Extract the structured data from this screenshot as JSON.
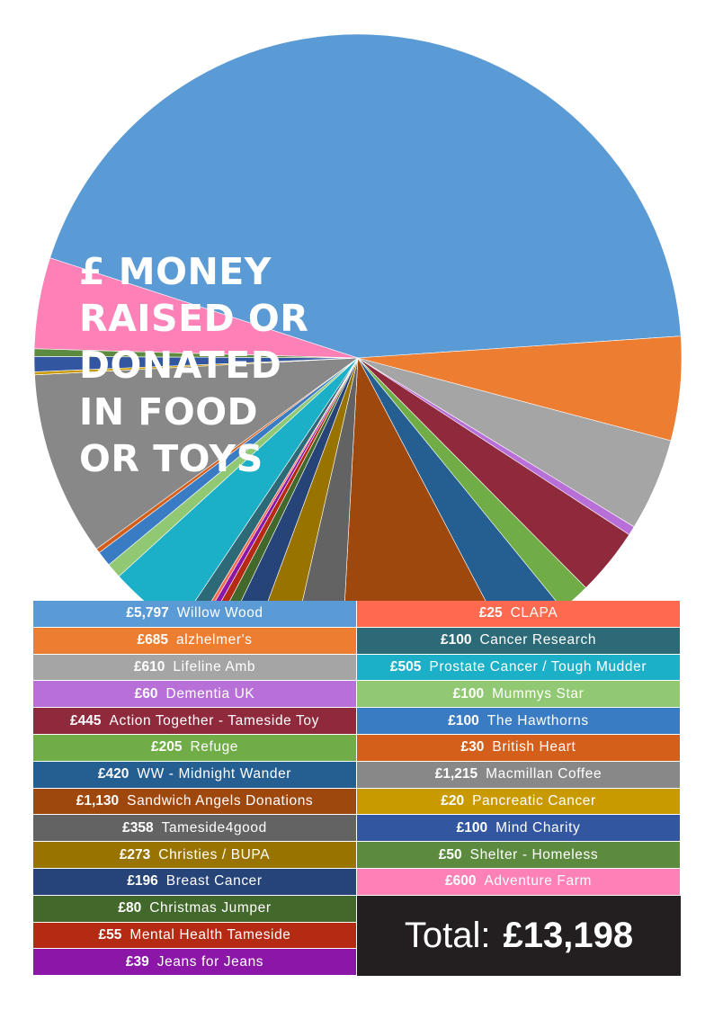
{
  "title_lines": [
    "£ MONEY",
    "RAISED OR",
    "DONATED",
    "IN FOOD",
    "OR TOYS"
  ],
  "chart_data": {
    "type": "pie",
    "title": "£ MONEY RAISED OR DONATED IN FOOD OR TOYS",
    "slices": [
      {
        "label": "Willow Wood",
        "amount_text": "£5,797",
        "value": 5797,
        "color": "#5b9bd5"
      },
      {
        "label": "alzhelmer's",
        "amount_text": "£685",
        "value": 685,
        "color": "#ed7d31"
      },
      {
        "label": "Lifeline Amb",
        "amount_text": "£610",
        "value": 610,
        "color": "#a5a5a5"
      },
      {
        "label": "Dementia UK",
        "amount_text": "£60",
        "value": 60,
        "color": "#b86fd8"
      },
      {
        "label": "Action Together - Tameside Toy",
        "amount_text": "£445",
        "value": 445,
        "color": "#8e2a3c"
      },
      {
        "label": "Refuge",
        "amount_text": "£205",
        "value": 205,
        "color": "#70ad47"
      },
      {
        "label": "WW - Midnight Wander",
        "amount_text": "£420",
        "value": 420,
        "color": "#255e91"
      },
      {
        "label": "Sandwich Angels Donations",
        "amount_text": "£1,130",
        "value": 1130,
        "color": "#9e480e"
      },
      {
        "label": "Tameside4good",
        "amount_text": "£358",
        "value": 358,
        "color": "#636363"
      },
      {
        "label": "Christies / BUPA",
        "amount_text": "£273",
        "value": 273,
        "color": "#997300"
      },
      {
        "label": "Breast Cancer",
        "amount_text": "£196",
        "value": 196,
        "color": "#264478"
      },
      {
        "label": "Christmas Jumper",
        "amount_text": "£80",
        "value": 80,
        "color": "#43682b"
      },
      {
        "label": "Mental Health Tameside",
        "amount_text": "£55",
        "value": 55,
        "color": "#b52a12"
      },
      {
        "label": "Jeans for Jeans",
        "amount_text": "£39",
        "value": 39,
        "color": "#8b16a8"
      },
      {
        "label": "CLAPA",
        "amount_text": "£25",
        "value": 25,
        "color": "#fd6a4f"
      },
      {
        "label": "Cancer Research",
        "amount_text": "£100",
        "value": 100,
        "color": "#2d6a78"
      },
      {
        "label": "Prostate Cancer / Tough Mudder",
        "amount_text": "£505",
        "value": 505,
        "color": "#1cb0c8"
      },
      {
        "label": "Mummys Star",
        "amount_text": "£100",
        "value": 100,
        "color": "#91c873"
      },
      {
        "label": "The Hawthorns",
        "amount_text": "£100",
        "value": 100,
        "color": "#3a7cc4"
      },
      {
        "label": "British Heart",
        "amount_text": "£30",
        "value": 30,
        "color": "#d35f1a"
      },
      {
        "label": "Macmillan Coffee",
        "amount_text": "£1,215",
        "value": 1215,
        "color": "#888888"
      },
      {
        "label": "Pancreatic Cancer",
        "amount_text": "£20",
        "value": 20,
        "color": "#c99a00"
      },
      {
        "label": "Mind Charity",
        "amount_text": "£100",
        "value": 100,
        "color": "#3356a0"
      },
      {
        "label": "Shelter - Homeless",
        "amount_text": "£50",
        "value": 50,
        "color": "#5c8a3e"
      },
      {
        "label": "Adventure Farm",
        "amount_text": "£600",
        "value": 600,
        "color": "#fd80b6"
      }
    ]
  },
  "legend": {
    "left": [
      {
        "amount": "£5,797",
        "name": "Willow Wood",
        "color": "#5b9bd5"
      },
      {
        "amount": "£685",
        "name": "alzhelmer's",
        "color": "#ed7d31"
      },
      {
        "amount": "£610",
        "name": "Lifeline Amb",
        "color": "#a5a5a5"
      },
      {
        "amount": "£60",
        "name": "Dementia UK",
        "color": "#b86fd8"
      },
      {
        "amount": "£445",
        "name": "Action Together - Tameside Toy",
        "color": "#8e2a3c"
      },
      {
        "amount": "£205",
        "name": "Refuge",
        "color": "#70ad47"
      },
      {
        "amount": "£420",
        "name": "WW - Midnight Wander",
        "color": "#255e91"
      },
      {
        "amount": "£1,130",
        "name": "Sandwich Angels Donations",
        "color": "#9e480e"
      },
      {
        "amount": "£358",
        "name": "Tameside4good",
        "color": "#636363"
      },
      {
        "amount": "£273",
        "name": "Christies / BUPA",
        "color": "#997300"
      },
      {
        "amount": "£196",
        "name": "Breast Cancer",
        "color": "#264478"
      },
      {
        "amount": "£80",
        "name": "Christmas Jumper",
        "color": "#43682b"
      },
      {
        "amount": "£55",
        "name": "Mental Health Tameside",
        "color": "#b52a12"
      },
      {
        "amount": "£39",
        "name": "Jeans for Jeans",
        "color": "#8b16a8"
      }
    ],
    "right": [
      {
        "amount": "£25",
        "name": "CLAPA",
        "color": "#fd6a4f"
      },
      {
        "amount": "£100",
        "name": "Cancer Research",
        "color": "#2d6a78"
      },
      {
        "amount": "£505",
        "name": "Prostate Cancer / Tough Mudder",
        "color": "#1cb0c8"
      },
      {
        "amount": "£100",
        "name": "Mummys Star",
        "color": "#91c873"
      },
      {
        "amount": "£100",
        "name": "The Hawthorns",
        "color": "#3a7cc4"
      },
      {
        "amount": "£30",
        "name": "British Heart",
        "color": "#d35f1a"
      },
      {
        "amount": "£1,215",
        "name": "Macmillan Coffee",
        "color": "#888888"
      },
      {
        "amount": "£20",
        "name": "Pancreatic Cancer",
        "color": "#c99a00"
      },
      {
        "amount": "£100",
        "name": "Mind Charity",
        "color": "#3356a0"
      },
      {
        "amount": "£50",
        "name": "Shelter - Homeless",
        "color": "#5c8a3e"
      },
      {
        "amount": "£600",
        "name": "Adventure Farm",
        "color": "#fd80b6"
      }
    ]
  },
  "total": {
    "label": "Total:",
    "value": "£13,198",
    "background": "#231f20"
  }
}
